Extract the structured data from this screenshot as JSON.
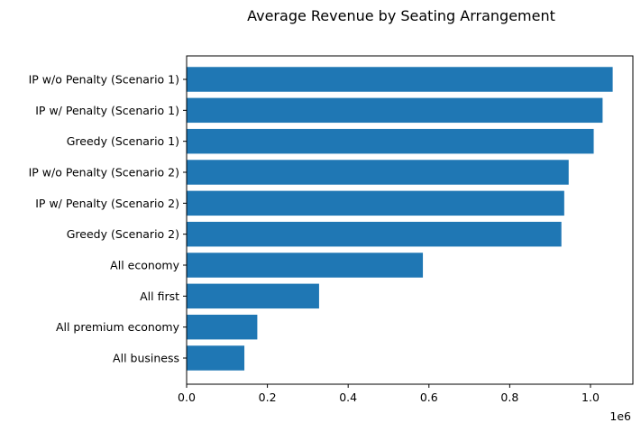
{
  "chart_data": {
    "type": "bar",
    "orientation": "horizontal",
    "title": "Average Revenue by Seating Arrangement",
    "xlabel": "",
    "ylabel": "",
    "x_offset_label": "1e6",
    "categories": [
      "IP w/o Penalty (Scenario 1)",
      "IP w/ Penalty (Scenario 1)",
      "Greedy (Scenario 1)",
      "IP w/o Penalty (Scenario 2)",
      "IP w/ Penalty (Scenario 2)",
      "Greedy (Scenario 2)",
      "All economy",
      "All first",
      "All premium economy",
      "All business"
    ],
    "values": [
      1055000,
      1030000,
      1008000,
      946000,
      935000,
      928000,
      585000,
      328000,
      175000,
      143000
    ],
    "xlim": [
      0,
      1105000
    ],
    "xticks": [
      0,
      200000,
      400000,
      600000,
      800000,
      1000000
    ],
    "xtick_labels": [
      "0.0",
      "0.2",
      "0.4",
      "0.6",
      "0.8",
      "1.0"
    ],
    "grid": false,
    "legend": "none",
    "bar_color": "#1f77b4"
  }
}
